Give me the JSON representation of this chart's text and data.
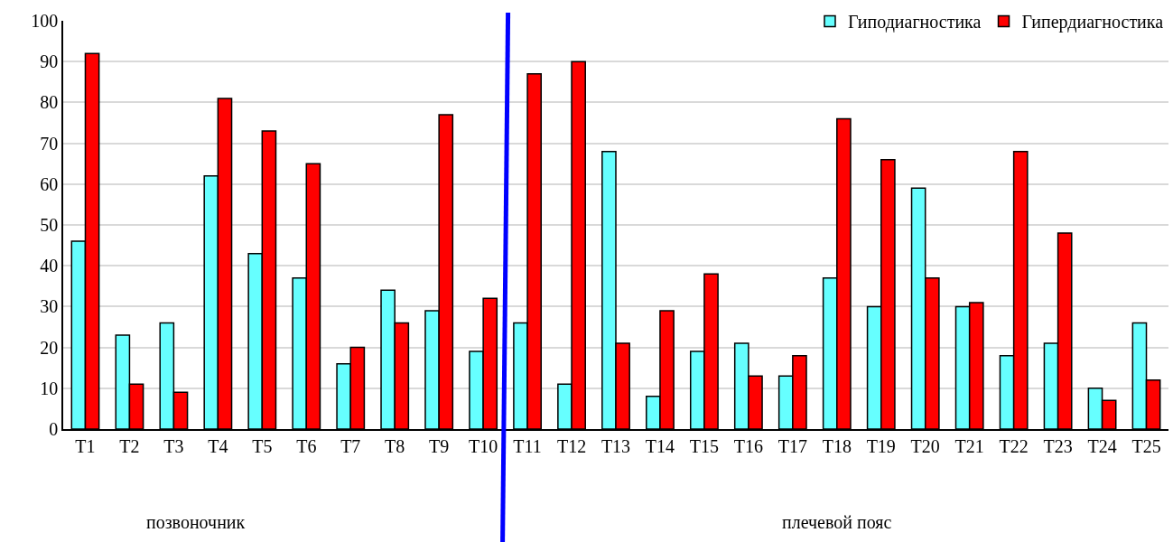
{
  "chart_data": {
    "type": "bar",
    "categories": [
      "T1",
      "T2",
      "T3",
      "T4",
      "T5",
      "T6",
      "T7",
      "T8",
      "T9",
      "T10",
      "T11",
      "T12",
      "T13",
      "T14",
      "T15",
      "T16",
      "T17",
      "T18",
      "T19",
      "T20",
      "T21",
      "T22",
      "T23",
      "T24",
      "T25"
    ],
    "series": [
      {
        "name": "Гиподиагностика",
        "color": "#66ffff",
        "values": [
          46,
          23,
          26,
          62,
          43,
          37,
          16,
          34,
          29,
          19,
          26,
          11,
          68,
          8,
          19,
          21,
          13,
          37,
          30,
          59,
          30,
          18,
          21,
          10,
          26
        ]
      },
      {
        "name": "Гипердиагностика",
        "color": "#ff0000",
        "values": [
          92,
          11,
          9,
          81,
          73,
          65,
          20,
          26,
          77,
          32,
          87,
          90,
          21,
          29,
          38,
          13,
          18,
          76,
          66,
          37,
          31,
          68,
          48,
          7,
          12
        ]
      }
    ],
    "ylim": [
      0,
      100
    ],
    "yticks": [
      0,
      10,
      20,
      30,
      40,
      50,
      60,
      70,
      80,
      90,
      100
    ],
    "grid": "y",
    "legend": "top right",
    "annotations": [
      "позвоночник",
      "плечевой пояс"
    ]
  }
}
